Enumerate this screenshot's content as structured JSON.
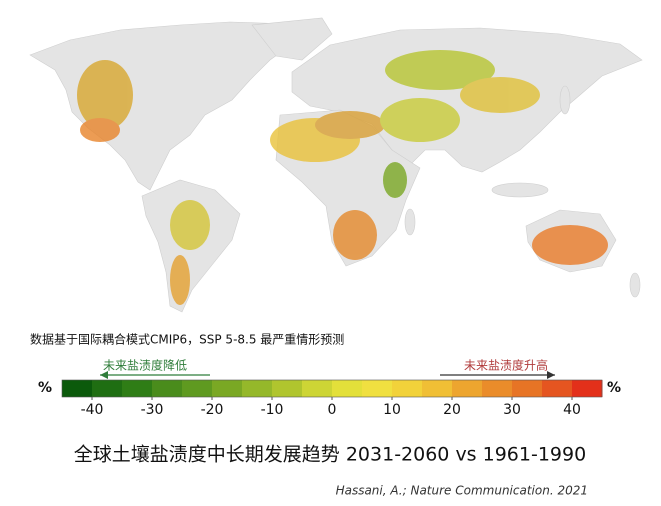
{
  "source_note": "数据基于国际耦合模式CMIP6，SSP 5-8.5 最严重情形预测",
  "legend": {
    "unit_left": "%",
    "unit_right": "%",
    "left_arrow_label": "未来盐渍度降低",
    "right_arrow_label": "未来盐渍度升高",
    "lim": [
      -45,
      45
    ],
    "ticks": [
      -40,
      -30,
      -20,
      -10,
      0,
      10,
      20,
      30,
      40
    ],
    "colors": [
      "#0b5a0b",
      "#1f6e12",
      "#2f7d16",
      "#4a8c1c",
      "#5f9a20",
      "#7aa824",
      "#95b82a",
      "#b0c52e",
      "#cdd535",
      "#e3e03a",
      "#f0e040",
      "#f2d23a",
      "#f0bf35",
      "#eda52f",
      "#ea8c2a",
      "#e77425",
      "#e55520",
      "#e3301a"
    ]
  },
  "title": "全球土壤盐渍度中长期发展趋势 2031-2060 vs 1961-1990",
  "citation": "Hassani, A.; Nature Communication. 2021"
}
